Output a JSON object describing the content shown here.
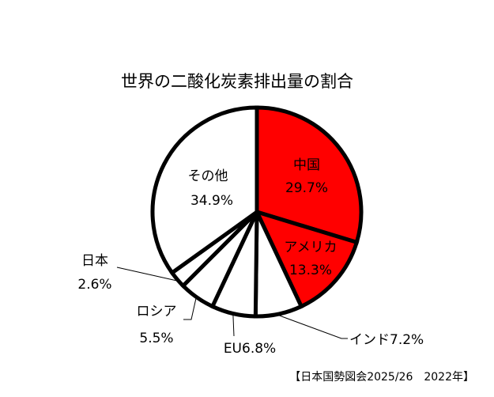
{
  "chart_data": {
    "type": "pie",
    "title": "世界の二酸化炭素排出量の割合",
    "source": "【日本国勢図会2025/26　2022年】",
    "slices": [
      {
        "name": "中国",
        "value": 29.7,
        "value_label": "29.7%",
        "color": "#ff0000"
      },
      {
        "name": "アメリカ",
        "value": 13.3,
        "value_label": "13.3%",
        "color": "#ff0000"
      },
      {
        "name": "インド",
        "value": 7.2,
        "value_label": "インド7.2%",
        "color": "#ffffff"
      },
      {
        "name": "EU",
        "value": 6.8,
        "value_label": "EU6.8%",
        "color": "#ffffff"
      },
      {
        "name": "ロシア",
        "value": 5.5,
        "value_label": "5.5%",
        "color": "#ffffff"
      },
      {
        "name": "日本",
        "value": 2.6,
        "value_label": "2.6%",
        "color": "#ffffff"
      },
      {
        "name": "その他",
        "value": 34.9,
        "value_label": "34.9%",
        "color": "#ffffff"
      }
    ],
    "start_angle_deg": 0,
    "direction": "clockwise",
    "legend": "none"
  }
}
